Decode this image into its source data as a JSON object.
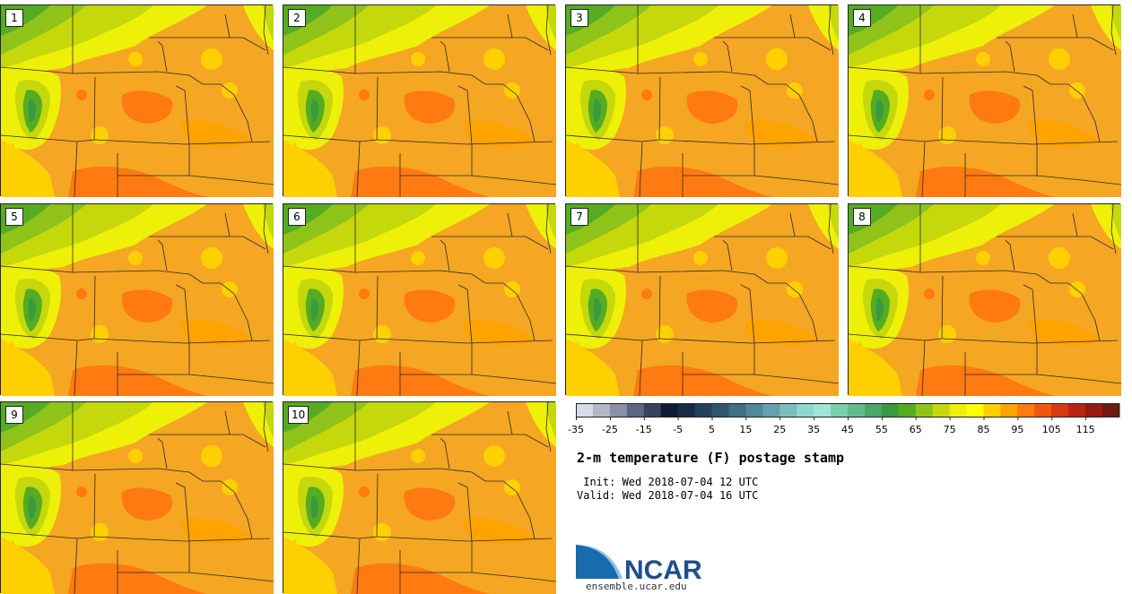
{
  "panels": [
    {
      "label": "1"
    },
    {
      "label": "2"
    },
    {
      "label": "3"
    },
    {
      "label": "4"
    },
    {
      "label": "5"
    },
    {
      "label": "6"
    },
    {
      "label": "7"
    },
    {
      "label": "8"
    },
    {
      "label": "9"
    },
    {
      "label": "10"
    }
  ],
  "colorbar": {
    "colors": [
      "#d9dce6",
      "#b3b8c6",
      "#8a90a7",
      "#5d6784",
      "#38425e",
      "#101a33",
      "#182a44",
      "#24405a",
      "#2f5570",
      "#3f6e86",
      "#4f879b",
      "#65a0ae",
      "#7dbdbd",
      "#8fd8cc",
      "#9fe4d6",
      "#7ccfae",
      "#62bb8a",
      "#4aa86a",
      "#3a9a3e",
      "#55ac22",
      "#8fc31a",
      "#c4d80c",
      "#eef008",
      "#ffff00",
      "#ffd000",
      "#ffa300",
      "#ff7a10",
      "#f25512",
      "#d83a10",
      "#b82610",
      "#951a10",
      "#6f1a10"
    ],
    "tick_labels": [
      "-35",
      "-25",
      "-15",
      "-5",
      "5",
      "15",
      "25",
      "35",
      "45",
      "55",
      "65",
      "75",
      "85",
      "95",
      "105",
      "115"
    ]
  },
  "title": "2-m temperature (F) postage stamp",
  "init_text": " Init: Wed 2018-07-04 12 UTC",
  "valid_text": "Valid: Wed 2018-07-04 16 UTC",
  "logo": {
    "name": "NCAR",
    "url": "ensemble.ucar.edu"
  }
}
